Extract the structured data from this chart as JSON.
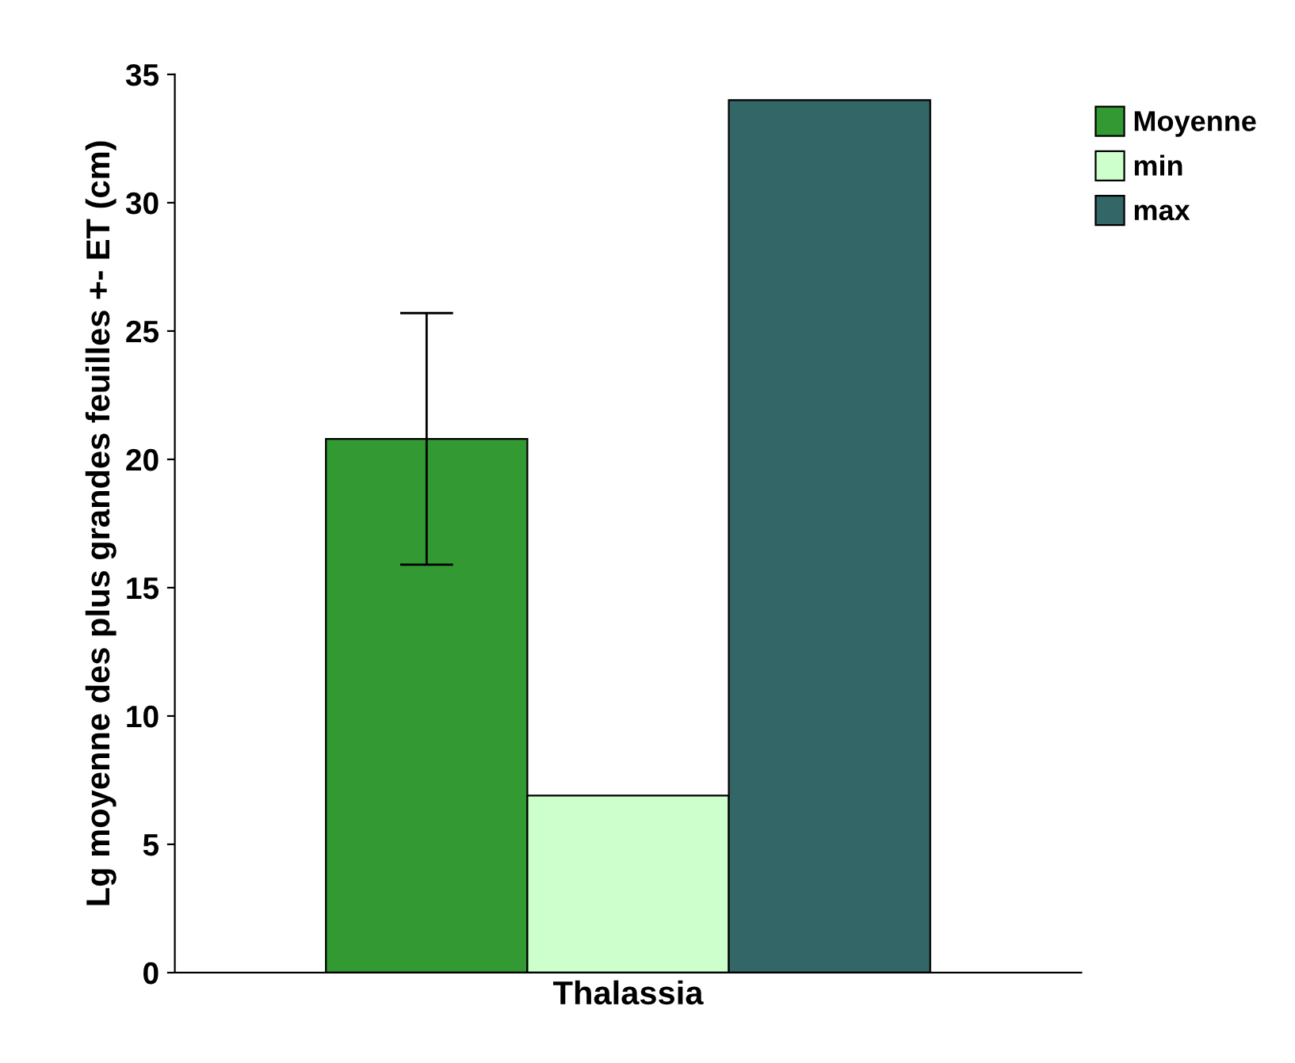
{
  "chart_data": {
    "type": "bar",
    "ylabel": "Lg moyenne des plus grandes feuilles +- ET (cm)",
    "categories": [
      "Thalassia"
    ],
    "series": [
      {
        "name": "Moyenne",
        "color": "#339933",
        "values": [
          20.8
        ],
        "errors": [
          4.9
        ]
      },
      {
        "name": "min",
        "color": "#ccffcc",
        "values": [
          6.9
        ]
      },
      {
        "name": "max",
        "color": "#336666",
        "values": [
          34.0
        ]
      }
    ],
    "ylim": [
      0,
      35
    ],
    "yticks": [
      0,
      5,
      10,
      15,
      20,
      25,
      30,
      35
    ],
    "grid": false,
    "legend": "top right"
  }
}
